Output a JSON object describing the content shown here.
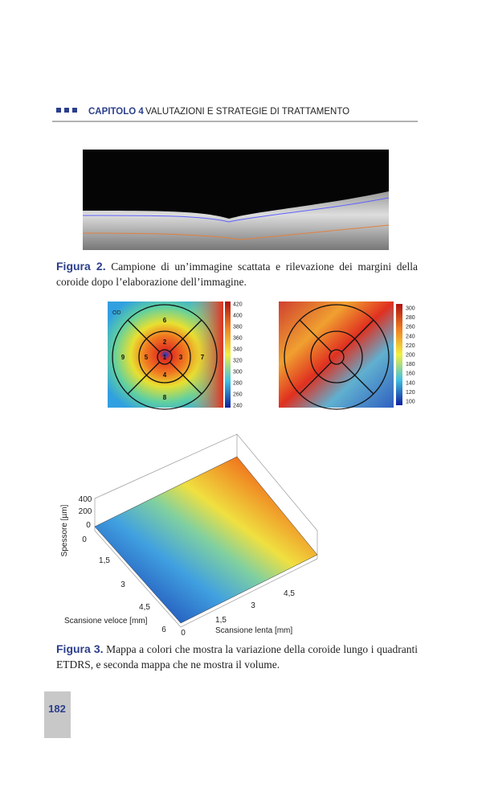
{
  "header": {
    "chapter": "CAPITOLO 4",
    "title": "VALUTAZIONI E STRATEGIE DI TRATTAMENTO"
  },
  "figure2": {
    "label": "Figura 2.",
    "caption": "Campione di un’immagine scattata e rilevazione dei margini della coroide dopo l’elaborazione dell’immagine."
  },
  "map1": {
    "corner": "OD",
    "sectors": [
      "1",
      "2",
      "3",
      "4",
      "5",
      "6",
      "7",
      "8",
      "9"
    ],
    "scale": [
      "420",
      "400",
      "380",
      "360",
      "340",
      "320",
      "300",
      "280",
      "260",
      "240"
    ]
  },
  "map2": {
    "scale": [
      "300",
      "280",
      "260",
      "240",
      "220",
      "200",
      "180",
      "160",
      "140",
      "120",
      "100"
    ]
  },
  "plot3d": {
    "z_label": "Spessore [µm]",
    "z_ticks": [
      "400",
      "200",
      "0"
    ],
    "x_label": "Scansione veloce [mm]",
    "x_ticks": [
      "0",
      "1,5",
      "3",
      "4,5",
      "6"
    ],
    "y_label": "Scansione lenta [mm]",
    "y_ticks": [
      "0",
      "1,5",
      "3",
      "4,5"
    ]
  },
  "figure3": {
    "label": "Figura 3.",
    "caption": "Mappa a colori che mostra la variazione della coroide lungo i quadranti ETDRS, e seconda mappa che ne mostra il volume."
  },
  "page_number": "182"
}
